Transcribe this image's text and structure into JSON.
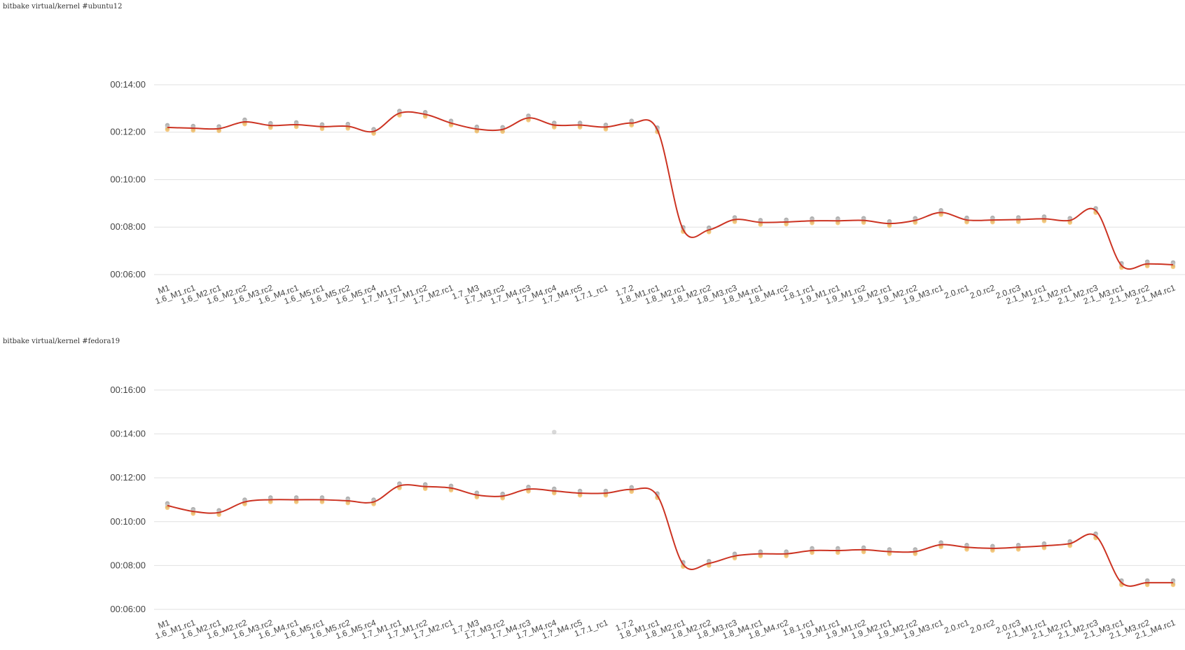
{
  "colors": {
    "line": "#cc3322",
    "dot_gray": "#7a7a7a",
    "dot_light": "#c8c8c8",
    "dot_orange": "#f0a830",
    "grid": "#e1e1e1"
  },
  "chart_data": [
    {
      "type": "line",
      "title": "bitbake virtual/kernel #ubuntu12",
      "categories": [
        "M1",
        "1.6_M1.rc1",
        "1.6_M2.rc1",
        "1.6_M2.rc2",
        "1.6_M3.rc2",
        "1.6_M4.rc1",
        "1.6_M5.rc1",
        "1.6_M5.rc2",
        "1.6_M5.rc4",
        "1.7_M1.rc1",
        "1.7_M1.rc2",
        "1.7_M2.rc1",
        "1.7_M3",
        "1.7_M3.rc2",
        "1.7_M4.rc3",
        "1.7_M4.rc4",
        "1.7_M4.rc5",
        "1.7.1_rc1",
        "1.7.2",
        "1.8_M1.rc1",
        "1.8_M2.rc1",
        "1.8_M2.rc2",
        "1.8_M3.rc3",
        "1.8_M4.rc1",
        "1.8_M4.rc2",
        "1.8.1.rc1",
        "1.9_M1.rc1",
        "1.9_M1.rc2",
        "1.9_M2.rc1",
        "1.9_M2.rc2",
        "1.9_M3.rc1",
        "2.0.rc1",
        "2.0.rc2",
        "2.0.rc3",
        "2.1_M1.rc1",
        "2.1_M2.rc1",
        "2.1_M2.rc3",
        "2.1_M3.rc1",
        "2.1_M3.rc2",
        "2.1_M4.rc1"
      ],
      "values": [
        732,
        730,
        729,
        746,
        737,
        739,
        734,
        735,
        722,
        768,
        765,
        743,
        728,
        727,
        756,
        738,
        738,
        733,
        743,
        726,
        474,
        473,
        499,
        492,
        493,
        496,
        496,
        497,
        489,
        497,
        517,
        498,
        498,
        499,
        501,
        497,
        522,
        383,
        387,
        385
      ],
      "ylim": [
        360,
        870
      ],
      "yticks": [
        360,
        480,
        600,
        720,
        840
      ],
      "ytick_labels": [
        "00:06:00",
        "00:08:00",
        "00:10:00",
        "00:12:00",
        "00:14:00"
      ],
      "grid": true
    },
    {
      "type": "line",
      "title": "bitbake virtual/kernel #fedora19",
      "categories": [
        "M1",
        "1.6_M1.rc1",
        "1.6_M2.rc1",
        "1.6_M2.rc2",
        "1.6_M3.rc2",
        "1.6_M4.rc1",
        "1.6_M5.rc1",
        "1.6_M5.rc2",
        "1.6_M5.rc4",
        "1.7_M1.rc1",
        "1.7_M1.rc2",
        "1.7_M2.rc1",
        "1.7_M3",
        "1.7_M3.rc2",
        "1.7_M4.rc3",
        "1.7_M4.rc4",
        "1.7_M4.rc5",
        "1.7.1_rc1",
        "1.7.2",
        "1.8_M1.rc1",
        "1.8_M2.rc1",
        "1.8_M2.rc2",
        "1.8_M3.rc3",
        "1.8_M4.rc1",
        "1.8_M4.rc2",
        "1.8.1.rc1",
        "1.9_M1.rc1",
        "1.9_M1.rc2",
        "1.9_M2.rc1",
        "1.9_M2.rc2",
        "1.9_M3.rc1",
        "2.0.rc1",
        "2.0.rc2",
        "2.0.rc3",
        "2.1_M1.rc1",
        "2.1_M2.rc1",
        "2.1_M2.rc3",
        "2.1_M3.rc1",
        "2.1_M3.rc2",
        "2.1_M4.rc1"
      ],
      "values": [
        644,
        628,
        625,
        654,
        660,
        660,
        660,
        657,
        654,
        698,
        696,
        692,
        673,
        670,
        689,
        684,
        678,
        678,
        688,
        671,
        483,
        486,
        506,
        512,
        512,
        521,
        521,
        523,
        518,
        518,
        537,
        530,
        527,
        530,
        534,
        540,
        561,
        433,
        433,
        433
      ],
      "outliers": [
        {
          "category": "1.7_M4.rc4",
          "value": 845
        }
      ],
      "ylim": [
        360,
        1000
      ],
      "yticks": [
        360,
        480,
        600,
        720,
        840,
        960
      ],
      "ytick_labels": [
        "00:06:00",
        "00:08:00",
        "00:10:00",
        "00:12:00",
        "00:14:00",
        "00:16:00"
      ],
      "grid": true
    }
  ]
}
